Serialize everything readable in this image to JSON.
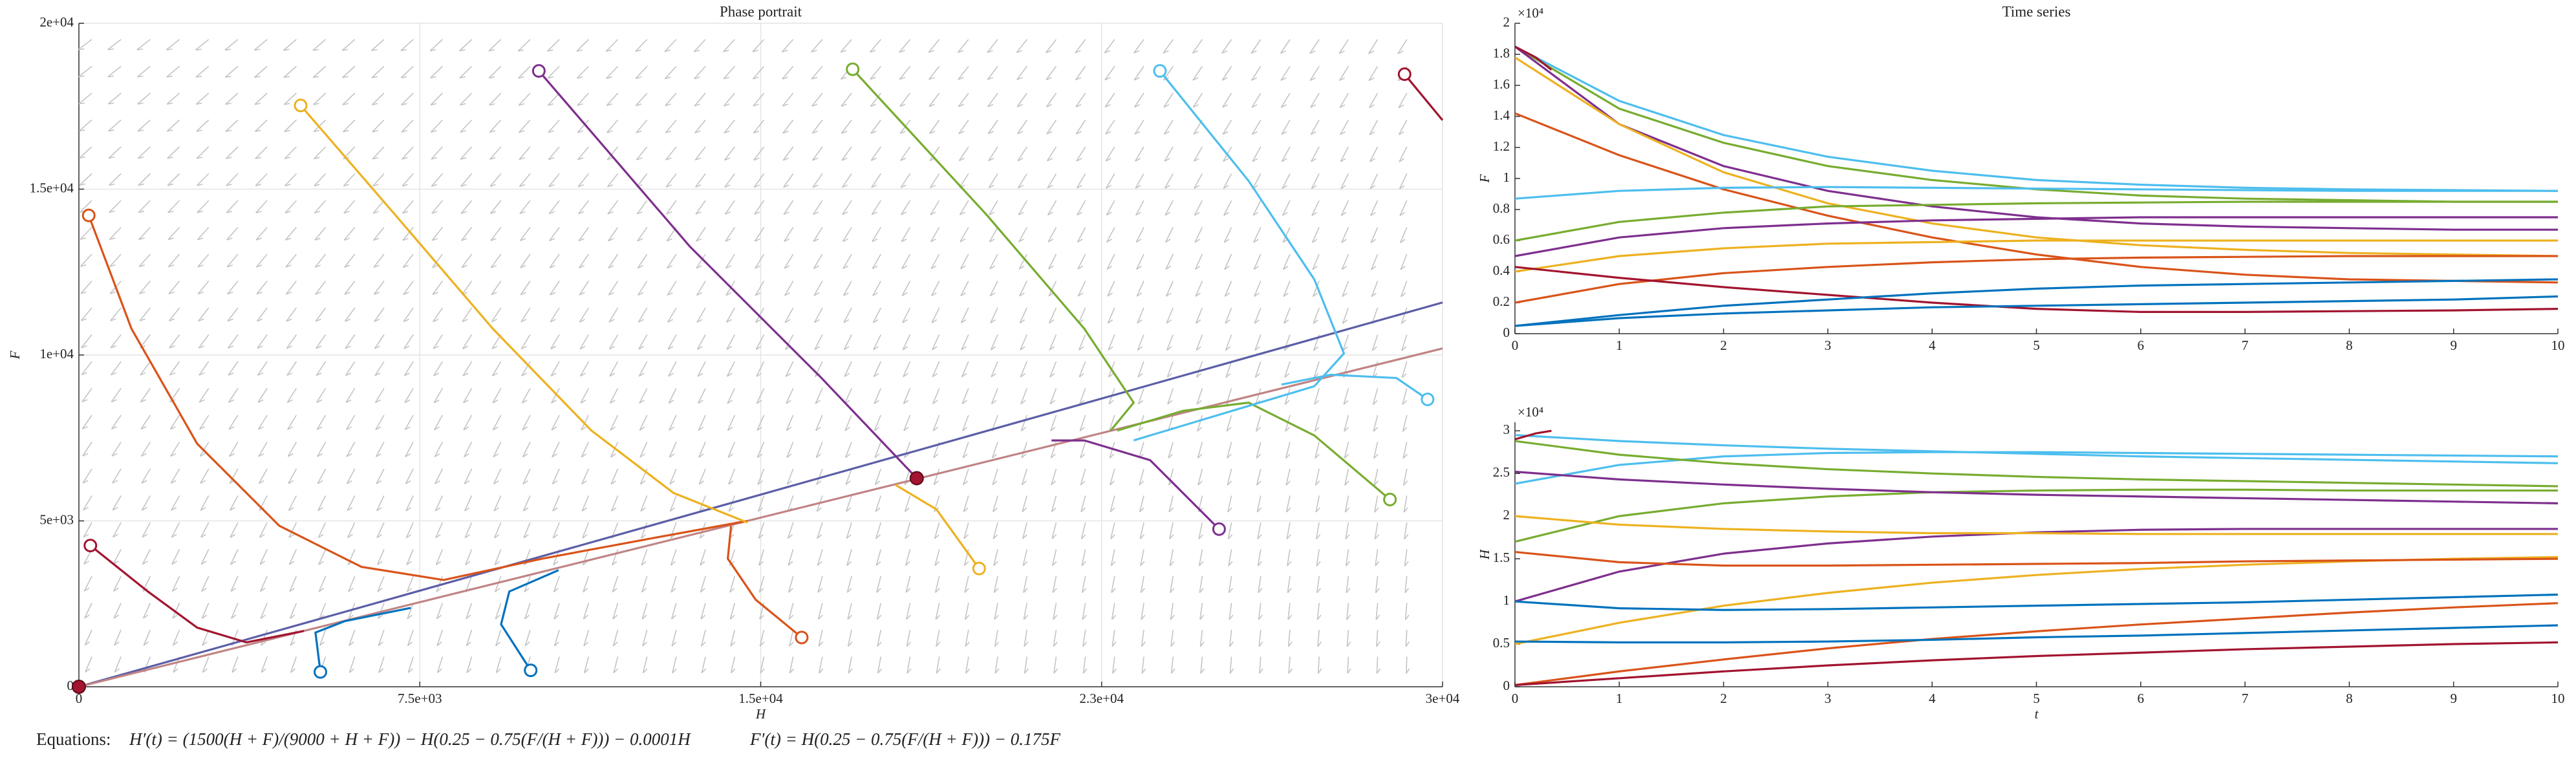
{
  "chart_data": [
    {
      "type": "phase",
      "title": "Phase portrait",
      "xlabel": "H",
      "ylabel": "F",
      "xlim": [
        0,
        30000
      ],
      "ylim": [
        0,
        20000
      ],
      "grid": true,
      "start_marker": "circle",
      "xticks": [
        0,
        {
          "value": 7500,
          "label": "7.5e+03"
        },
        {
          "value": 15000,
          "label": "1.5e+04"
        },
        {
          "value": 22500,
          "label": "2.3e+04"
        },
        {
          "value": 30000,
          "label": "3e+04"
        }
      ],
      "yticks": [
        0,
        {
          "value": 5000,
          "label": "5e+03"
        },
        {
          "value": 10000,
          "label": "1e+04"
        },
        {
          "value": 15000,
          "label": "1.5e+04"
        },
        {
          "value": 20000,
          "label": "2e+04"
        }
      ],
      "series": [
        {
          "color": "#5b5ea6",
          "x": [
            0,
            30000
          ],
          "values": [
            0,
            11584
          ],
          "start": false
        },
        {
          "color": "#c08484",
          "x": [
            0,
            30000
          ],
          "values": [
            0,
            10198
          ],
          "start": false
        },
        {
          "color": "#a2142f",
          "x": [
            253,
            1518,
            2602,
            3686,
            4951
          ],
          "values": [
            4257,
            2871,
            1782,
            1337,
            1683
          ]
        },
        {
          "color": "#a2142f",
          "x": [
            29165,
            30000
          ],
          "values": [
            18465,
            17079
          ]
        },
        {
          "color": "#d95319",
          "x": [
            217,
            1157,
            2602,
            4409,
            6216,
            8023,
            10192,
            12721,
            14709
          ],
          "values": [
            14208,
            10792,
            7327,
            4852,
            3614,
            3218,
            3861,
            4505,
            5000
          ]
        },
        {
          "color": "#d95319",
          "x": [
            15902,
            14890,
            14276,
            14348
          ],
          "values": [
            1485,
            2624,
            3861,
            4851
          ]
        },
        {
          "color": "#edb120",
          "x": [
            4879,
            6939,
            9107,
            11275,
            13082,
            14709
          ],
          "values": [
            17524,
            14257,
            10792,
            7723,
            5842,
            4950
          ]
        },
        {
          "color": "#edb120",
          "x": [
            19805,
            18866,
            17962
          ],
          "values": [
            3564,
            5346,
            6089
          ]
        },
        {
          "color": "#7e2f8e",
          "x": [
            10119,
            13444,
            16336,
            18432
          ],
          "values": [
            18564,
            13267,
            9307,
            6287
          ]
        },
        {
          "color": "#7e2f8e",
          "x": [
            25084,
            23566,
            22120,
            21398
          ],
          "values": [
            4752,
            6831,
            7425,
            7425
          ]
        },
        {
          "color": "#77ac30",
          "x": [
            17023,
            19950,
            22120,
            23205,
            22699
          ],
          "values": [
            18614,
            14257,
            10792,
            8564,
            7723
          ]
        },
        {
          "color": "#77ac30",
          "x": [
            28843,
            27180,
            25734,
            24289,
            22843
          ],
          "values": [
            5644,
            7574,
            8564,
            8317,
            7723
          ]
        },
        {
          "color": "#4dbeee",
          "x": [
            23783,
            25734,
            27180,
            27831,
            27180,
            25373,
            23205
          ],
          "values": [
            18564,
            15248,
            12277,
            10049,
            9059,
            8317,
            7426
          ]
        },
        {
          "color": "#4dbeee",
          "x": [
            29671,
            28987,
            27541,
            26457
          ],
          "values": [
            8663,
            9307,
            9406,
            9109
          ]
        },
        {
          "color": "#0072bd",
          "x": [
            5313,
            5205,
            5856,
            7301
          ],
          "values": [
            446,
            1634,
            1980,
            2376
          ]
        },
        {
          "color": "#0072bd",
          "x": [
            9939,
            9288,
            9469,
            10553
          ],
          "values": [
            495,
            1881,
            2871,
            3515
          ]
        },
        {
          "color": "#a2142f",
          "x": [
            0,
            18432
          ],
          "values": [
            0,
            6287
          ],
          "marker": "filled",
          "line": false,
          "start": false
        }
      ]
    },
    {
      "type": "line",
      "title": "Time series",
      "ylabel": "F",
      "y_exponent": "×10⁴",
      "x": [
        0,
        1,
        2,
        3,
        4,
        5,
        6,
        7,
        8,
        9,
        10
      ],
      "xlim": [
        0,
        10
      ],
      "ylim": [
        0,
        20000
      ],
      "xticks": [
        0,
        1,
        2,
        3,
        4,
        5,
        6,
        7,
        8,
        9,
        10
      ],
      "yticks": [
        0,
        {
          "value": 2000,
          "label": "0.2"
        },
        {
          "value": 4000,
          "label": "0.4"
        },
        {
          "value": 6000,
          "label": "0.6"
        },
        {
          "value": 8000,
          "label": "0.8"
        },
        {
          "value": 10000,
          "label": "1"
        },
        {
          "value": 12000,
          "label": "1.2"
        },
        {
          "value": 14000,
          "label": "1.4"
        },
        {
          "value": 16000,
          "label": "1.6"
        },
        {
          "value": 18000,
          "label": "1.8"
        },
        {
          "value": 20000,
          "label": "2"
        }
      ],
      "series": [
        {
          "color": "#4dbeee",
          "values": [
            18500,
            15000,
            12800,
            11400,
            10500,
            9900,
            9600,
            9400,
            9300,
            9250,
            9200
          ]
        },
        {
          "color": "#77ac30",
          "values": [
            18500,
            14500,
            12300,
            10800,
            9900,
            9300,
            8900,
            8700,
            8600,
            8500,
            8500
          ]
        },
        {
          "color": "#7e2f8e",
          "values": [
            18500,
            13500,
            10800,
            9200,
            8200,
            7500,
            7100,
            6900,
            6800,
            6700,
            6700
          ]
        },
        {
          "color": "#edb120",
          "values": [
            17800,
            13500,
            10400,
            8400,
            7100,
            6200,
            5700,
            5400,
            5200,
            5100,
            5000
          ]
        },
        {
          "color": "#d95319",
          "values": [
            14200,
            11500,
            9300,
            7600,
            6200,
            5100,
            4300,
            3800,
            3500,
            3400,
            3300
          ]
        },
        {
          "color": "#4dbeee",
          "values": [
            8700,
            9200,
            9400,
            9450,
            9400,
            9350,
            9300,
            9250,
            9200,
            9200,
            9200
          ]
        },
        {
          "color": "#77ac30",
          "values": [
            6000,
            7200,
            7800,
            8200,
            8300,
            8400,
            8450,
            8500,
            8500,
            8500,
            8500
          ]
        },
        {
          "color": "#7e2f8e",
          "values": [
            5000,
            6200,
            6800,
            7100,
            7300,
            7400,
            7500,
            7500,
            7500,
            7500,
            7500
          ]
        },
        {
          "color": "#edb120",
          "values": [
            4000,
            5000,
            5500,
            5800,
            5900,
            6000,
            6000,
            6000,
            6000,
            6000,
            6000
          ]
        },
        {
          "color": "#d95319",
          "values": [
            2000,
            3200,
            3900,
            4300,
            4600,
            4800,
            4900,
            4950,
            5000,
            5000,
            5000
          ]
        },
        {
          "color": "#a2142f",
          "values": [
            4300,
            3600,
            3000,
            2500,
            2000,
            1600,
            1400,
            1400,
            1450,
            1500,
            1600
          ]
        },
        {
          "color": "#0072bd",
          "values": [
            500,
            1200,
            1800,
            2200,
            2600,
            2900,
            3100,
            3200,
            3300,
            3400,
            3500
          ]
        },
        {
          "color": "#0072bd",
          "values": [
            500,
            1000,
            1300,
            1500,
            1700,
            1800,
            1900,
            2000,
            2100,
            2200,
            2400
          ]
        },
        {
          "color": "#a2142f",
          "x": [
            0,
            0.2,
            0.35
          ],
          "values": [
            18500,
            17800,
            17000
          ]
        }
      ]
    },
    {
      "type": "line",
      "xlabel": "t",
      "ylabel": "H",
      "y_exponent": "×10⁴",
      "x": [
        0,
        1,
        2,
        3,
        4,
        5,
        6,
        7,
        8,
        9,
        10
      ],
      "xlim": [
        0,
        10
      ],
      "ylim": [
        0,
        31000
      ],
      "xticks": [
        0,
        1,
        2,
        3,
        4,
        5,
        6,
        7,
        8,
        9,
        10
      ],
      "yticks": [
        0,
        {
          "value": 5000,
          "label": "0.5"
        },
        {
          "value": 10000,
          "label": "1"
        },
        {
          "value": 15000,
          "label": "1.5"
        },
        {
          "value": 20000,
          "label": "2"
        },
        {
          "value": 25000,
          "label": "2.5"
        },
        {
          "value": 30000,
          "label": "3"
        }
      ],
      "series": [
        {
          "color": "#4dbeee",
          "values": [
            29500,
            28800,
            28300,
            27900,
            27600,
            27300,
            27000,
            26800,
            26600,
            26400,
            26200
          ]
        },
        {
          "color": "#4dbeee",
          "values": [
            23800,
            26000,
            27000,
            27400,
            27500,
            27500,
            27400,
            27300,
            27200,
            27100,
            27000
          ]
        },
        {
          "color": "#77ac30",
          "values": [
            28800,
            27200,
            26200,
            25500,
            25000,
            24600,
            24300,
            24100,
            23900,
            23700,
            23500
          ]
        },
        {
          "color": "#77ac30",
          "values": [
            17000,
            20000,
            21500,
            22300,
            22800,
            23000,
            23100,
            23100,
            23000,
            23000,
            23000
          ]
        },
        {
          "color": "#7e2f8e",
          "values": [
            25200,
            24300,
            23700,
            23200,
            22800,
            22500,
            22300,
            22100,
            21900,
            21700,
            21500
          ]
        },
        {
          "color": "#7e2f8e",
          "values": [
            10000,
            13500,
            15600,
            16800,
            17600,
            18100,
            18400,
            18500,
            18500,
            18500,
            18500
          ]
        },
        {
          "color": "#edb120",
          "values": [
            20000,
            19000,
            18500,
            18200,
            18000,
            18000,
            17900,
            17900,
            17900,
            17900,
            17900
          ]
        },
        {
          "color": "#edb120",
          "values": [
            5000,
            7500,
            9500,
            11000,
            12200,
            13100,
            13800,
            14300,
            14700,
            15000,
            15200
          ]
        },
        {
          "color": "#d95319",
          "values": [
            15800,
            14600,
            14200,
            14200,
            14300,
            14400,
            14500,
            14700,
            14800,
            14900,
            15000
          ]
        },
        {
          "color": "#d95319",
          "values": [
            200,
            1800,
            3200,
            4500,
            5600,
            6500,
            7300,
            8000,
            8700,
            9300,
            9800
          ]
        },
        {
          "color": "#0072bd",
          "values": [
            10000,
            9200,
            9000,
            9100,
            9300,
            9500,
            9700,
            9900,
            10200,
            10500,
            10800
          ]
        },
        {
          "color": "#0072bd",
          "values": [
            5300,
            5200,
            5200,
            5300,
            5500,
            5800,
            6000,
            6300,
            6600,
            6900,
            7200
          ]
        },
        {
          "color": "#a2142f",
          "values": [
            200,
            1000,
            1800,
            2500,
            3100,
            3600,
            4000,
            4400,
            4700,
            5000,
            5200
          ]
        },
        {
          "color": "#a2142f",
          "x": [
            0,
            0.2,
            0.35
          ],
          "values": [
            29000,
            29700,
            30000
          ]
        }
      ]
    }
  ],
  "equations": {
    "label": "Equations:",
    "h_prime": "H′(t) = (1500(H + F)/(9000 + H + F)) − H(0.25 − 0.75(F/(H + F))) − 0.0001H",
    "f_prime": "F′(t) = H(0.25 − 0.75(F/(H + F))) − 0.175F"
  }
}
